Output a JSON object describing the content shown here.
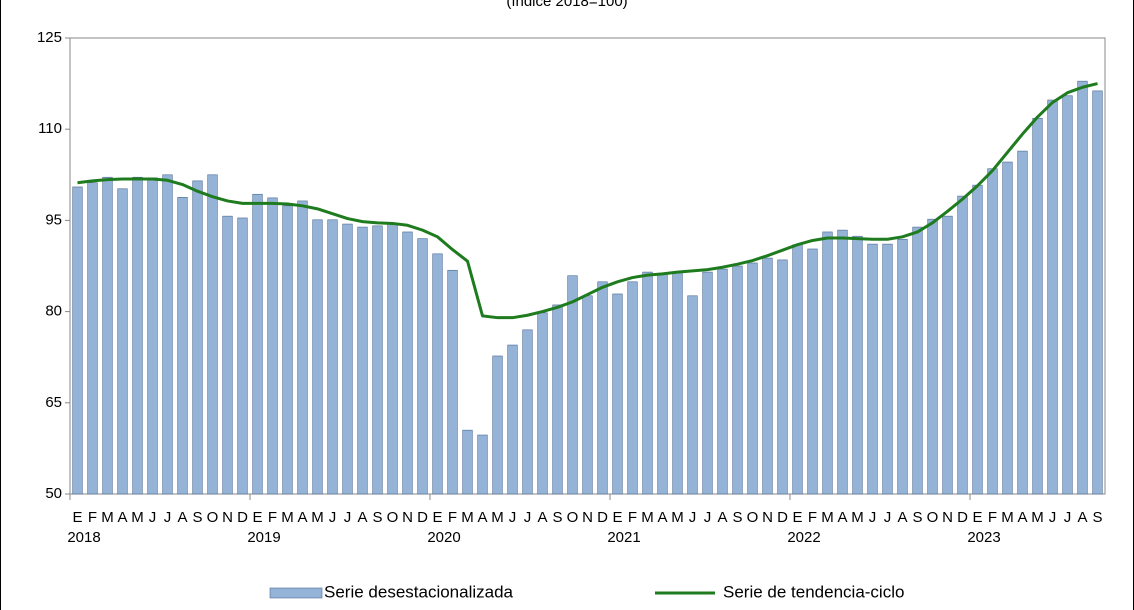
{
  "chart_data": {
    "type": "bar",
    "subtitle": "(índice 2018=100)",
    "categories": [
      "E",
      "F",
      "M",
      "A",
      "M",
      "J",
      "J",
      "A",
      "S",
      "O",
      "N",
      "D",
      "E",
      "F",
      "M",
      "A",
      "M",
      "J",
      "J",
      "A",
      "S",
      "O",
      "N",
      "D",
      "E",
      "F",
      "M",
      "A",
      "M",
      "J",
      "J",
      "A",
      "S",
      "O",
      "N",
      "D",
      "E",
      "F",
      "M",
      "A",
      "M",
      "J",
      "J",
      "A",
      "S",
      "O",
      "N",
      "D",
      "E",
      "F",
      "M",
      "A",
      "M",
      "J",
      "J",
      "A",
      "S",
      "O",
      "N",
      "D",
      "E",
      "F",
      "M",
      "A",
      "M",
      "J",
      "J",
      "A",
      "S"
    ],
    "years": [
      "2018",
      "2019",
      "2020",
      "2021",
      "2022",
      "2023"
    ],
    "series": [
      {
        "name": "Serie desestacionalizada",
        "type": "bar",
        "color": "#95b3d7",
        "values": [
          100.5,
          101.2,
          102.1,
          100.2,
          102.1,
          102,
          102.5,
          98.8,
          101.5,
          102.5,
          95.7,
          95.4,
          99.3,
          98.7,
          97.4,
          98.2,
          95.1,
          95.1,
          94.4,
          93.9,
          94.1,
          94.6,
          93.1,
          92,
          89.5,
          86.8,
          60.5,
          59.7,
          72.7,
          74.5,
          77,
          79.8,
          81.1,
          85.9,
          82.6,
          84.9,
          82.9,
          84.9,
          86.5,
          86.3,
          86.5,
          82.6,
          86.5,
          87,
          87.5,
          88,
          88.8,
          88.5,
          91,
          90.3,
          93.1,
          93.4,
          92.4,
          91.1,
          91.1,
          91.9,
          93.9,
          95.2,
          95.7,
          99,
          100.8,
          103.5,
          104.6,
          106.4,
          111.8,
          114.8,
          115.5,
          117.9,
          116.3
        ]
      },
      {
        "name": "Serie de tendencia-ciclo",
        "type": "line",
        "color": "#1e7b1e",
        "values": [
          101.2,
          101.5,
          101.7,
          101.8,
          101.8,
          101.8,
          101.6,
          100.9,
          99.8,
          98.9,
          98.2,
          97.8,
          97.8,
          97.8,
          97.7,
          97.4,
          96.9,
          96.1,
          95.3,
          94.8,
          94.6,
          94.5,
          94.2,
          93.4,
          92.3,
          90.2,
          88.3,
          79.3,
          79,
          79,
          79.4,
          80,
          80.7,
          81.6,
          82.8,
          84,
          84.9,
          85.6,
          86,
          86.2,
          86.5,
          86.7,
          86.9,
          87.3,
          87.8,
          88.4,
          89.2,
          90.1,
          91,
          91.7,
          92.1,
          92.1,
          92,
          91.9,
          91.9,
          92.3,
          93.1,
          94.6,
          96.5,
          98.5,
          100.7,
          103.2,
          106.2,
          109.2,
          112,
          114.4,
          116,
          116.9,
          117.5
        ]
      }
    ],
    "ylim": [
      50,
      125
    ],
    "yticks": [
      50,
      65,
      80,
      95,
      110,
      125
    ],
    "grid": false,
    "legend": "bottom"
  }
}
